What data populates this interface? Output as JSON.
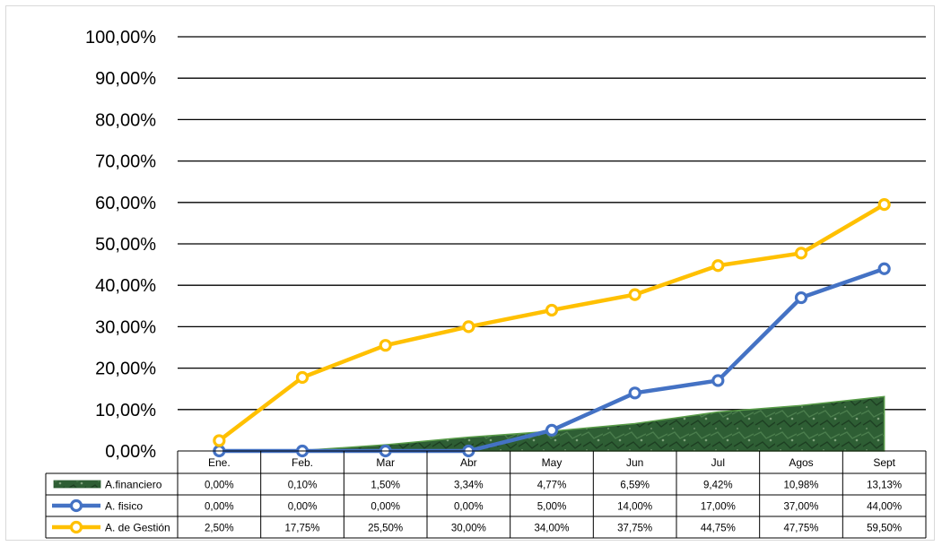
{
  "chart_data": {
    "type": "line",
    "title": "",
    "xlabel": "",
    "ylabel": "",
    "categories": [
      "Ene.",
      "Feb.",
      "Mar",
      "Abr",
      "May",
      "Jun",
      "Jul",
      "Agos",
      "Sept"
    ],
    "yticks": [
      "0,00%",
      "10,00%",
      "20,00%",
      "30,00%",
      "40,00%",
      "50,00%",
      "60,00%",
      "70,00%",
      "80,00%",
      "90,00%",
      "100,00%"
    ],
    "ylim": [
      0,
      100
    ],
    "grid": true,
    "legend_placement": "data-table-left",
    "series": [
      {
        "name": "A.financiero",
        "kind": "area",
        "color": "#2e5e34",
        "values": [
          0.0,
          0.1,
          1.5,
          3.34,
          4.77,
          6.59,
          9.42,
          10.98,
          13.13
        ],
        "labels": [
          "0,00%",
          "0,10%",
          "1,50%",
          "3,34%",
          "4,77%",
          "6,59%",
          "9,42%",
          "10,98%",
          "13,13%"
        ]
      },
      {
        "name": "A. fisico",
        "kind": "line",
        "color": "#4472c4",
        "values": [
          0.0,
          0.0,
          0.0,
          0.0,
          5.0,
          14.0,
          17.0,
          37.0,
          44.0
        ],
        "labels": [
          "0,00%",
          "0,00%",
          "0,00%",
          "0,00%",
          "5,00%",
          "14,00%",
          "17,00%",
          "37,00%",
          "44,00%"
        ]
      },
      {
        "name": "A. de Gestión",
        "kind": "line",
        "color": "#ffc000",
        "values": [
          2.5,
          17.75,
          25.5,
          30.0,
          34.0,
          37.75,
          44.75,
          47.75,
          59.5
        ],
        "labels": [
          "2,50%",
          "17,75%",
          "25,50%",
          "30,00%",
          "34,00%",
          "37,75%",
          "44,75%",
          "47,75%",
          "59,50%"
        ]
      }
    ]
  }
}
